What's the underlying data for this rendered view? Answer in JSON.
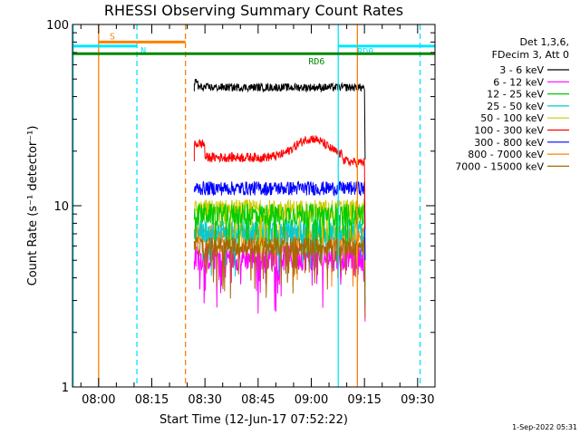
{
  "chart_data": {
    "type": "line",
    "title": "RHESSI Observing Summary Count Rates",
    "ylabel": "Count Rate (s⁻¹ detector⁻¹)",
    "xlabel": "Start Time (12-Jun-17 07:52:22)",
    "yscale": "log",
    "ylim": [
      1,
      100
    ],
    "xlim_minutes": [
      -7.37,
      94.9
    ],
    "x_tick_labels": [
      "08:00",
      "08:15",
      "08:30",
      "08:45",
      "09:00",
      "09:15",
      "09:30"
    ],
    "x_tick_minutes": [
      0,
      15,
      30,
      45,
      60,
      75,
      90
    ],
    "y_tick_labels": [
      "1",
      "10",
      "100"
    ],
    "y_tick_values": [
      1,
      10,
      100
    ],
    "legend_header": [
      "Det 1,3,6,",
      "FDecim 3, Att 0"
    ],
    "legend_position": "right",
    "data_window_minutes": [
      27.0,
      75.0
    ],
    "series": [
      {
        "name": "3 - 6 keV",
        "color": "#000000",
        "level": 45,
        "spread": 0.05,
        "dips": false
      },
      {
        "name": "6 - 12 keV",
        "color": "#ff00ff",
        "level": 5.2,
        "spread": 0.16,
        "dips": true
      },
      {
        "name": "12 - 25 keV",
        "color": "#00cc00",
        "level": 9.0,
        "spread": 0.14,
        "dips": true
      },
      {
        "name": "25 - 50 keV",
        "color": "#00cccc",
        "level": 7.3,
        "spread": 0.15,
        "dips": true
      },
      {
        "name": "50 - 100 keV",
        "color": "#cccc00",
        "level": 9.5,
        "spread": 0.14,
        "dips": true
      },
      {
        "name": "100 - 300 keV",
        "color": "#ff0000",
        "level": 18.5,
        "spread": 0.06,
        "dips": false
      },
      {
        "name": "300 - 800 keV",
        "color": "#0000ff",
        "level": 12.5,
        "spread": 0.09,
        "dips": false
      },
      {
        "name": "800 - 7000 keV",
        "color": "#ff8000",
        "level": 7.0,
        "spread": 0.15,
        "dips": true
      },
      {
        "name": "7000 - 15000 keV",
        "color": "#aa6600",
        "level": 6.0,
        "spread": 0.12,
        "dips": true
      }
    ],
    "flag_bars": [
      {
        "label": "S",
        "color": "#ff8000",
        "start_minute": 0,
        "end_minute": 24.5,
        "level": 80
      },
      {
        "label": "N",
        "color": "#00e5ff",
        "start_minute": -7.37,
        "end_minute": 10.8,
        "level": 76
      },
      {
        "label": "RD0",
        "color": "#00e5ff",
        "start_minute": 67.6,
        "end_minute": 94.9,
        "level": 76
      },
      {
        "label": "RD6",
        "color": "#008800",
        "start_minute": -7.37,
        "end_minute": 94.9,
        "level": 69
      }
    ],
    "vertical_markers": [
      {
        "minute": 0.0,
        "color": "#ff8000",
        "style": "solid"
      },
      {
        "minute": 10.8,
        "color": "#00e5ff",
        "style": "dashed"
      },
      {
        "minute": 24.5,
        "color": "#ff8000",
        "style": "dashed"
      },
      {
        "minute": 67.6,
        "color": "#00e5ff",
        "style": "solid"
      },
      {
        "minute": 73.0,
        "color": "#ff8000",
        "style": "solid"
      },
      {
        "minute": 90.7,
        "color": "#00e5ff",
        "style": "dashed"
      },
      {
        "minute": -7.2,
        "color": "#00e5ff",
        "style": "solid"
      }
    ],
    "grid": false
  },
  "footer": {
    "date_stamp": "1-Sep-2022 05:31"
  }
}
